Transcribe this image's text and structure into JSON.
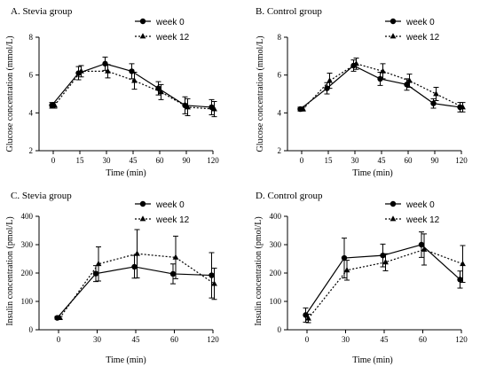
{
  "chart_data": [
    {
      "type": "line",
      "title": "A. Stevia group",
      "xlabel": "Time (min)",
      "ylabel": "Glucose concentration (mmol/L)",
      "categories": [
        "0",
        "15",
        "30",
        "45",
        "60",
        "90",
        "120"
      ],
      "ylim": [
        2,
        8
      ],
      "yticks": [
        2,
        4,
        6,
        8
      ],
      "legend_position": "top-right",
      "series": [
        {
          "name": "week 0",
          "marker": "circle",
          "line": "solid",
          "values": [
            4.4,
            6.1,
            6.6,
            6.2,
            5.3,
            4.4,
            4.3
          ],
          "errors": [
            0.15,
            0.35,
            0.35,
            0.4,
            0.35,
            0.45,
            0.4
          ]
        },
        {
          "name": "week 12",
          "marker": "triangle",
          "line": "dotted",
          "values": [
            4.4,
            6.2,
            6.2,
            5.7,
            5.1,
            4.3,
            4.2
          ],
          "errors": [
            0.15,
            0.3,
            0.35,
            0.45,
            0.4,
            0.45,
            0.4
          ]
        }
      ]
    },
    {
      "type": "line",
      "title": "B. Control group",
      "xlabel": "Time (min)",
      "ylabel": "Glucose concentration (mmol/L)",
      "categories": [
        "0",
        "15",
        "30",
        "45",
        "60",
        "90",
        "120"
      ],
      "ylim": [
        2,
        8
      ],
      "yticks": [
        2,
        4,
        6,
        8
      ],
      "legend_position": "top-right",
      "series": [
        {
          "name": "week 0",
          "marker": "circle",
          "line": "solid",
          "values": [
            4.2,
            5.3,
            6.5,
            5.8,
            5.5,
            4.5,
            4.3
          ],
          "errors": [
            0.1,
            0.3,
            0.3,
            0.35,
            0.3,
            0.25,
            0.25
          ]
        },
        {
          "name": "week 12",
          "marker": "triangle",
          "line": "dotted",
          "values": [
            4.2,
            5.7,
            6.6,
            6.2,
            5.7,
            5.0,
            4.3
          ],
          "errors": [
            0.1,
            0.4,
            0.3,
            0.4,
            0.35,
            0.35,
            0.25
          ]
        }
      ]
    },
    {
      "type": "line",
      "title": "C. Stevia group",
      "xlabel": "Time (min)",
      "ylabel": "Insulin concentration (pmol/L)",
      "categories": [
        "0",
        "30",
        "45",
        "60",
        "120"
      ],
      "ylim": [
        0,
        400
      ],
      "yticks": [
        0,
        100,
        200,
        300,
        400
      ],
      "legend_position": "top-right",
      "series": [
        {
          "name": "week 0",
          "marker": "circle",
          "line": "solid",
          "values": [
            42,
            198,
            222,
            197,
            192
          ],
          "errors": [
            5,
            28,
            40,
            35,
            80
          ]
        },
        {
          "name": "week 12",
          "marker": "triangle",
          "line": "dotted",
          "values": [
            42,
            232,
            268,
            255,
            162
          ],
          "errors": [
            5,
            60,
            85,
            75,
            55
          ]
        }
      ]
    },
    {
      "type": "line",
      "title": "D. Control group",
      "xlabel": "Time (min)",
      "ylabel": "Insulin concentration (pmol/L)",
      "categories": [
        "0",
        "30",
        "45",
        "60",
        "120"
      ],
      "ylim": [
        0,
        400
      ],
      "yticks": [
        0,
        100,
        200,
        300,
        400
      ],
      "legend_position": "top-right",
      "series": [
        {
          "name": "week 0",
          "marker": "circle",
          "line": "solid",
          "values": [
            52,
            253,
            262,
            300,
            177
          ],
          "errors": [
            25,
            70,
            40,
            45,
            30
          ]
        },
        {
          "name": "week 12",
          "marker": "triangle",
          "line": "dotted",
          "values": [
            40,
            210,
            238,
            283,
            232
          ],
          "errors": [
            15,
            35,
            30,
            55,
            65
          ]
        }
      ]
    }
  ]
}
